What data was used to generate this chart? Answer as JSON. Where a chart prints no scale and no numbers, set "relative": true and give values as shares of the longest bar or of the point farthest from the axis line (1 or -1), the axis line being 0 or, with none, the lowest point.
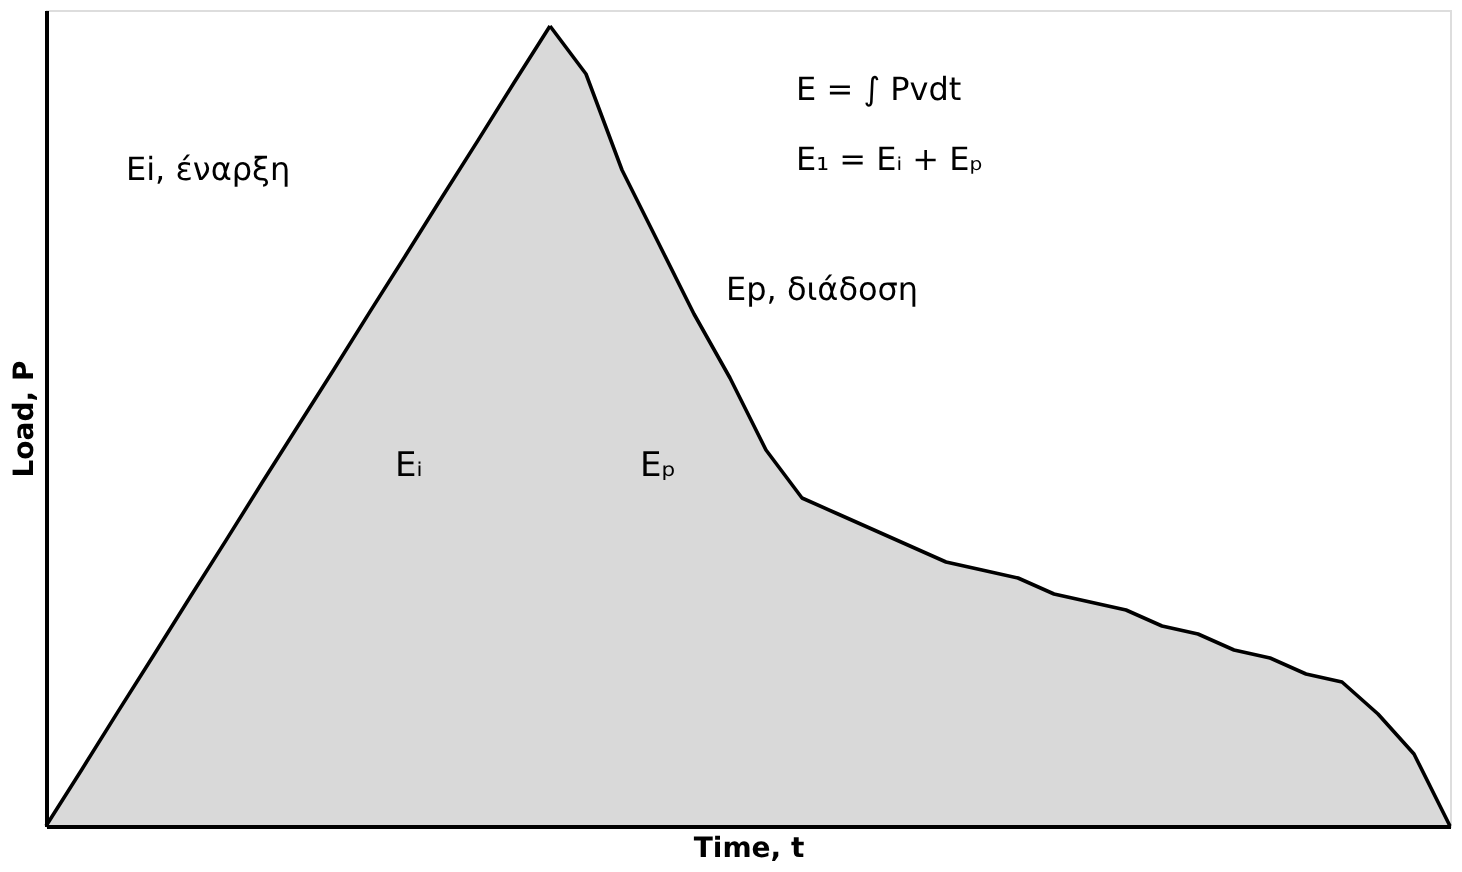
{
  "chart_data": {
    "type": "area",
    "relative": true,
    "xlabel": "Time, t",
    "ylabel": "Load, P",
    "categories": [
      null,
      null,
      null,
      null,
      null,
      null,
      null,
      null,
      null,
      null,
      null,
      null,
      null,
      null,
      null,
      null,
      null,
      null,
      null,
      null,
      null,
      null,
      null,
      null,
      null,
      null,
      null,
      null,
      null,
      null,
      null,
      null,
      null,
      null,
      null,
      null,
      null,
      null,
      null,
      null
    ],
    "series": [
      {
        "name": "Eᵢ",
        "color": "#000000",
        "values": [
          0,
          0.071,
          0.143,
          0.214,
          0.286,
          0.357,
          0.429,
          0.5,
          0.571,
          0.643,
          0.714,
          0.786,
          0.857,
          0.929,
          1,
          null,
          null,
          null,
          null,
          null,
          null,
          null,
          null,
          null,
          null,
          null,
          null,
          null,
          null,
          null,
          null,
          null,
          null,
          null,
          null,
          null,
          null,
          null,
          null,
          null
        ]
      },
      {
        "name": "Eₚ",
        "color": "#000000",
        "values": [
          null,
          null,
          null,
          null,
          null,
          null,
          null,
          null,
          null,
          null,
          null,
          null,
          null,
          null,
          1,
          0.94,
          0.82,
          0.73,
          0.64,
          0.56,
          0.47,
          0.41,
          0.39,
          0.37,
          0.35,
          0.33,
          0.32,
          0.31,
          0.29,
          0.28,
          0.27,
          0.25,
          0.24,
          0.22,
          0.21,
          0.19,
          0.18,
          0.14,
          0.09,
          0
        ]
      }
    ],
    "annotations": [
      "Ei, έναρξη",
      "Ep, διάδοση",
      "E = ∫ Pvdt",
      "E₁ = Eᵢ + Eₚ"
    ],
    "tick_labels": false,
    "grid": false
  }
}
